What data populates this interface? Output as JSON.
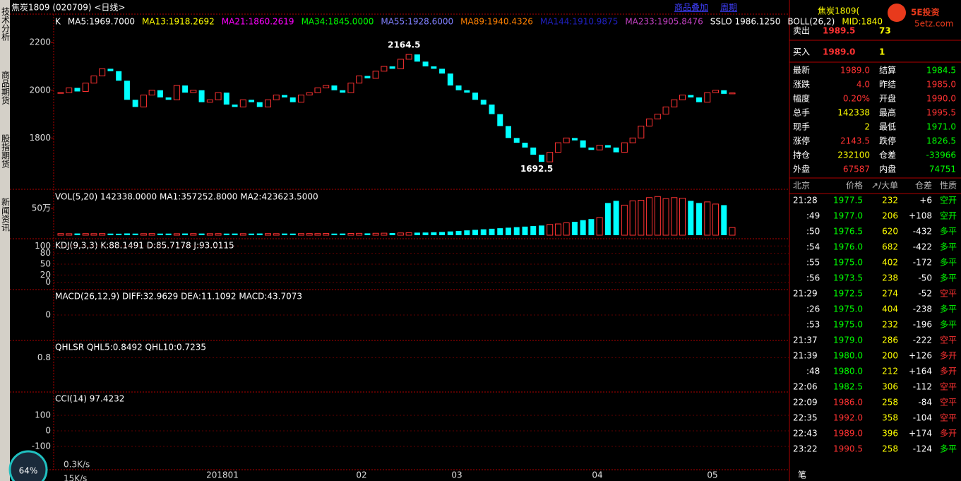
{
  "title_bar": {
    "title": "焦炭1809 (020709) <日线>",
    "buttons": [
      "商品叠加",
      "周期"
    ]
  },
  "sidebar": {
    "tabs": [
      "技术分析",
      "商品期货",
      "股指期货",
      "新闻资讯"
    ],
    "gauge": "64%",
    "speeds": [
      "0.3K/s",
      "15K/s"
    ]
  },
  "chart_data": {
    "type": "candlestick",
    "indicator_line": [
      {
        "text": "K",
        "color": "#ffffff"
      },
      {
        "text": "MA5:1969.7000",
        "color": "#ffffff"
      },
      {
        "text": "MA13:1918.2692",
        "color": "#ffff00"
      },
      {
        "text": "MA21:1860.2619",
        "color": "#ff00ff"
      },
      {
        "text": "MA34:1845.0000",
        "color": "#00ff00"
      },
      {
        "text": "MA55:1928.6000",
        "color": "#8080ff"
      },
      {
        "text": "MA89:1940.4326",
        "color": "#ff8000"
      },
      {
        "text": "MA144:1910.9875",
        "color": "#2020c0"
      },
      {
        "text": "MA233:1905.8476",
        "color": "#c040c0"
      },
      {
        "text": "SSLO  1986.1250",
        "color": "#ffffff"
      },
      {
        "text": "BOLL(26,2)",
        "color": "#ffffff"
      },
      {
        "text": "MID:1840",
        "color": "#ffff00"
      }
    ],
    "annotations": [
      {
        "text": "2164.5",
        "value": 2164.5
      },
      {
        "text": "1692.5",
        "value": 1692.5
      }
    ],
    "xlabels": [
      "201801",
      "02",
      "03",
      "04",
      "05"
    ],
    "up_color": "#ff3232",
    "down_color": "#00ffff",
    "ylim": [
      1585,
      2319
    ],
    "yticks": [
      1800,
      2000,
      2200
    ],
    "close": [
      1990,
      2010,
      1995,
      2030,
      2060,
      2090,
      2080,
      2040,
      1960,
      1930,
      1980,
      2000,
      1970,
      1960,
      2020,
      1990,
      2000,
      1950,
      1960,
      1990,
      1940,
      1930,
      1960,
      1950,
      1930,
      1960,
      1980,
      1970,
      1950,
      1980,
      1990,
      2010,
      2020,
      2000,
      1990,
      2030,
      2060,
      2050,
      2080,
      2100,
      2090,
      2130,
      2150,
      2120,
      2100,
      2090,
      2070,
      2020,
      2000,
      1990,
      1960,
      1940,
      1900,
      1850,
      1800,
      1780,
      1760,
      1730,
      1700,
      1740,
      1780,
      1800,
      1790,
      1760,
      1750,
      1770,
      1760,
      1740,
      1780,
      1800,
      1850,
      1880,
      1900,
      1930,
      1960,
      1980,
      1970,
      1950,
      1990,
      2000,
      1985,
      1989
    ],
    "volume": {
      "label": "VOL(5,20)  142338.0000  MA1:357252.8000  MA2:423623.5000",
      "ylim": [
        0,
        855000
      ],
      "yticks": [
        {
          "value": 500000,
          "label": "50万"
        }
      ],
      "values": [
        30000,
        28000,
        32000,
        30000,
        29000,
        31000,
        30000,
        28000,
        33000,
        30000,
        29000,
        31000,
        30000,
        30000,
        28000,
        32000,
        30000,
        31000,
        29000,
        30000,
        30000,
        31000,
        29000,
        30000,
        32000,
        30000,
        29000,
        31000,
        30000,
        30000,
        31000,
        30000,
        32000,
        30000,
        31000,
        33000,
        35000,
        34000,
        36000,
        38000,
        40000,
        42000,
        45000,
        48000,
        50000,
        55000,
        60000,
        70000,
        80000,
        90000,
        100000,
        110000,
        120000,
        130000,
        140000,
        150000,
        160000,
        170000,
        180000,
        200000,
        210000,
        230000,
        250000,
        280000,
        300000,
        330000,
        600000,
        640000,
        560000,
        640000,
        650000,
        700000,
        720000,
        680000,
        700000,
        690000,
        640000,
        600000,
        620000,
        580000,
        560000,
        142338
      ]
    },
    "panels": [
      {
        "label": "KDJ(9,3,3)  K:88.1491  D:85.7178  J:93.0115",
        "ylim": [
          -20,
          120
        ],
        "yticks": [
          100,
          80,
          50,
          20,
          0
        ]
      },
      {
        "label": "MACD(26,12,9)  DIFF:32.9629  DEA:11.1092  MACD:43.7073",
        "ylim": [
          -60,
          60
        ],
        "yticks": [
          0
        ]
      },
      {
        "label": "QHLSR  QHL5:0.8492  QHL10:0.7235",
        "ylim": [
          0,
          1.2
        ],
        "yticks": [
          0.8
        ]
      },
      {
        "label": "CCI(14)  97.4232",
        "ylim": [
          -250,
          250
        ],
        "yticks": [
          100,
          0,
          -100
        ]
      }
    ]
  },
  "quote": {
    "header": "焦炭1809(",
    "logo": "5E投资",
    "site": "5etz.com",
    "ask": {
      "label": "卖出",
      "price": "1989.5",
      "vol": "73"
    },
    "bid": {
      "label": "买入",
      "price": "1989.0",
      "vol": "1"
    },
    "rows": [
      [
        "最新",
        "1989.0",
        "结算",
        "1984.5"
      ],
      [
        "涨跌",
        "4.0",
        "昨结",
        "1985.0"
      ],
      [
        "幅度",
        "0.20%",
        "开盘",
        "1990.0"
      ],
      [
        "总手",
        "142338",
        "最高",
        "1995.5"
      ],
      [
        "现手",
        "2",
        "最低",
        "1971.0"
      ],
      [
        "涨停",
        "2143.5",
        "跌停",
        "1826.5"
      ],
      [
        "持仓",
        "232100",
        "仓差",
        "-33966"
      ],
      [
        "外盘",
        "67587",
        "内盘",
        "74751"
      ]
    ]
  },
  "trades": {
    "header": [
      "北京",
      "价格",
      "↗/大单",
      "仓差",
      "性质"
    ],
    "rows": [
      [
        "21:28",
        "1977.5",
        "232",
        "+6",
        "空开"
      ],
      [
        ":49",
        "1977.0",
        "206",
        "+108",
        "空开"
      ],
      [
        ":50",
        "1976.5",
        "620",
        "-432",
        "多平"
      ],
      [
        ":54",
        "1976.0",
        "682",
        "-422",
        "多平"
      ],
      [
        ":55",
        "1975.0",
        "402",
        "-172",
        "多平"
      ],
      [
        ":56",
        "1973.5",
        "238",
        "-50",
        "多平"
      ],
      [
        "21:29",
        "1972.5",
        "274",
        "-52",
        "空平"
      ],
      [
        ":26",
        "1975.0",
        "404",
        "-238",
        "多平"
      ],
      [
        ":53",
        "1975.0",
        "232",
        "-196",
        "多平"
      ],
      [
        "21:37",
        "1979.0",
        "286",
        "-222",
        "空平"
      ],
      [
        "21:39",
        "1980.0",
        "200",
        "+126",
        "多开"
      ],
      [
        ":48",
        "1980.0",
        "212",
        "+164",
        "多开"
      ],
      [
        "22:06",
        "1982.5",
        "306",
        "-112",
        "空平"
      ],
      [
        "22:09",
        "1986.0",
        "258",
        "-84",
        "空平"
      ],
      [
        "22:35",
        "1992.0",
        "358",
        "-104",
        "空平"
      ],
      [
        "22:43",
        "1989.0",
        "396",
        "+174",
        "多开"
      ],
      [
        "23:22",
        "1990.5",
        "258",
        "-124",
        "多平"
      ]
    ],
    "footer": "笔"
  }
}
